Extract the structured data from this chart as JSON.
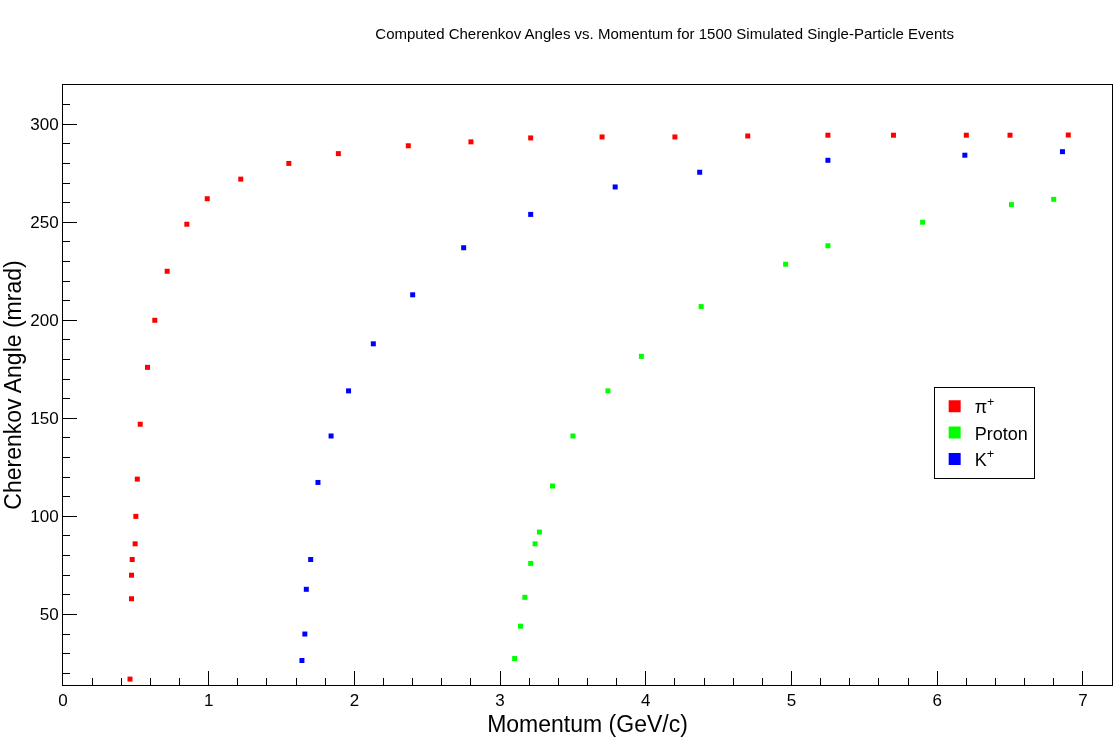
{
  "chart_data": {
    "type": "scatter",
    "title": "Computed Cherenkov Angles vs. Momentum for 1500 Simulated Single-Particle Events",
    "xlabel": "Momentum (GeV/c)",
    "ylabel": "Cherenkov Angle (mrad)",
    "xlim": [
      0,
      7.2
    ],
    "ylim": [
      14,
      320
    ],
    "xticks": [
      0,
      1,
      2,
      3,
      4,
      5,
      6,
      7
    ],
    "yticks": [
      50,
      100,
      150,
      200,
      250,
      300
    ],
    "legend": "right",
    "marker": "square",
    "series": [
      {
        "name": "π$^{+}$",
        "color": "#ff0000",
        "x": [
          0.46,
          0.47,
          0.47,
          0.475,
          0.495,
          0.5,
          0.51,
          0.53,
          0.58,
          0.63,
          0.715,
          0.85,
          0.99,
          1.22,
          1.55,
          1.89,
          2.37,
          2.8,
          3.21,
          3.7,
          4.2,
          4.7,
          5.25,
          5.7,
          6.2,
          6.5,
          6.9
        ],
        "values": [
          17,
          58,
          70,
          78,
          86,
          100,
          119,
          147,
          176,
          200,
          225,
          249,
          262,
          272,
          280,
          285,
          289,
          291,
          293,
          293.5,
          293.5,
          294,
          294.4,
          294.4,
          294.4,
          294.4,
          294.5
        ]
      },
      {
        "name": "Proton",
        "color": "#00ff00",
        "x": [
          3.1,
          3.14,
          3.17,
          3.21,
          3.24,
          3.27,
          3.36,
          3.5,
          3.74,
          3.97,
          4.38,
          4.96,
          5.25,
          5.9,
          6.51,
          6.8
        ],
        "values": [
          27.5,
          44,
          58.7,
          76,
          86,
          92,
          115.5,
          141,
          164,
          181.6,
          207,
          228.6,
          238,
          250,
          259,
          261.7
        ]
      },
      {
        "name": "K$^{+}$",
        "color": "#0000ff",
        "x": [
          1.64,
          1.66,
          1.67,
          1.7,
          1.75,
          1.84,
          1.96,
          2.13,
          2.4,
          2.75,
          3.21,
          3.79,
          4.37,
          5.25,
          6.19,
          6.86
        ],
        "values": [
          26.5,
          40,
          62.8,
          78,
          117.3,
          141,
          164,
          188,
          213,
          237,
          254,
          268,
          275.5,
          281.6,
          284.2,
          286
        ]
      }
    ]
  }
}
